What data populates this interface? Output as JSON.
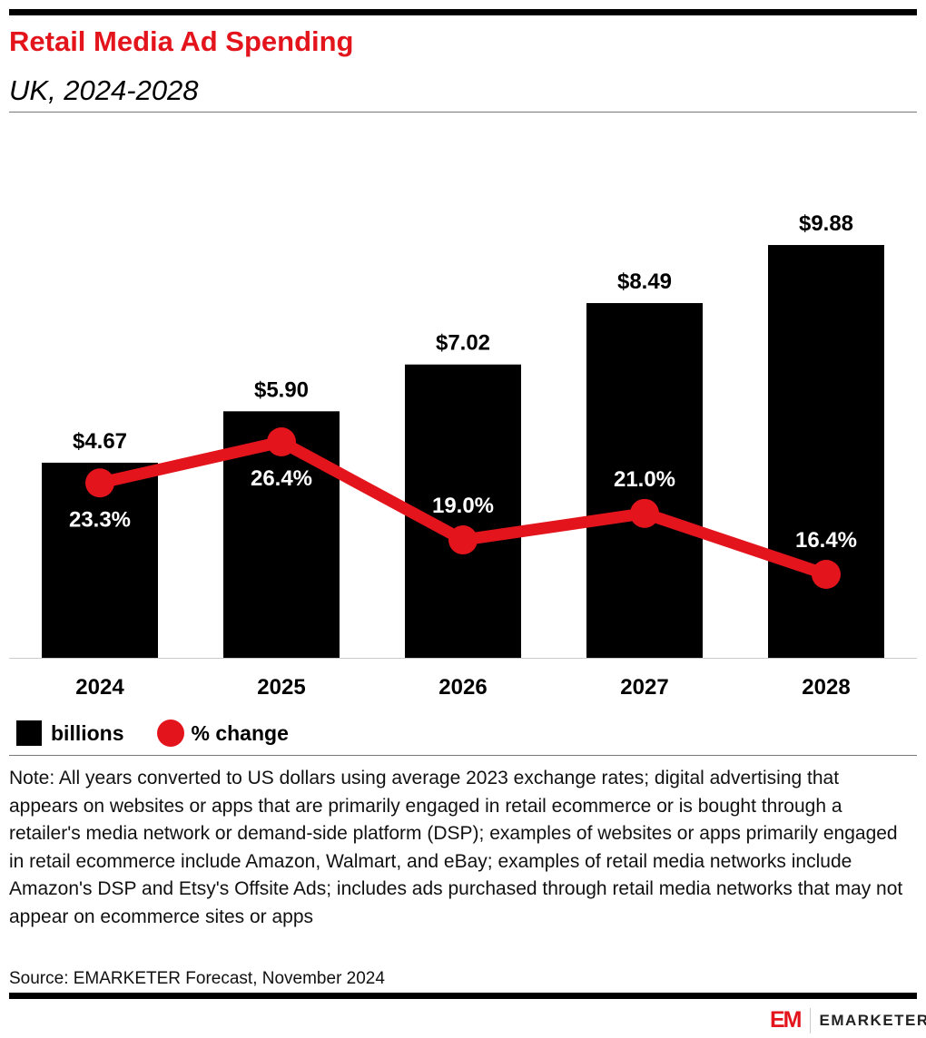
{
  "header": {
    "title": "Retail Media Ad Spending",
    "subtitle": "UK, 2024-2028"
  },
  "chart_data": {
    "type": "bar",
    "categories": [
      "2024",
      "2025",
      "2026",
      "2027",
      "2028"
    ],
    "series": [
      {
        "name": "billions",
        "type": "bar",
        "values": [
          4.67,
          5.9,
          7.02,
          8.49,
          9.88
        ],
        "labels": [
          "$4.67",
          "$5.90",
          "$7.02",
          "$8.49",
          "$9.88"
        ],
        "color": "#000000"
      },
      {
        "name": "% change",
        "type": "line",
        "values": [
          23.3,
          26.4,
          19.0,
          21.0,
          16.4
        ],
        "labels": [
          "23.3%",
          "26.4%",
          "19.0%",
          "21.0%",
          "16.4%"
        ],
        "color": "#e3141b"
      }
    ],
    "grid": false,
    "legend": "bottom-left"
  },
  "legend": {
    "bars": "billions",
    "line": "% change"
  },
  "note": "Note: All years converted to US dollars using average 2023 exchange rates; digital advertising that appears on websites or apps that are primarily engaged in retail ecommerce or is bought through a retailer's media network or demand-side platform (DSP); examples of websites or apps primarily engaged in retail ecommerce include Amazon, Walmart, and eBay; examples of retail media networks include Amazon's DSP and Etsy's Offsite Ads; includes ads purchased through retail media networks that may not appear on ecommerce sites or apps",
  "source": "Source: EMARKETER Forecast, November 2024",
  "logo": {
    "mark": "EM",
    "brand": "EMARKETER"
  }
}
